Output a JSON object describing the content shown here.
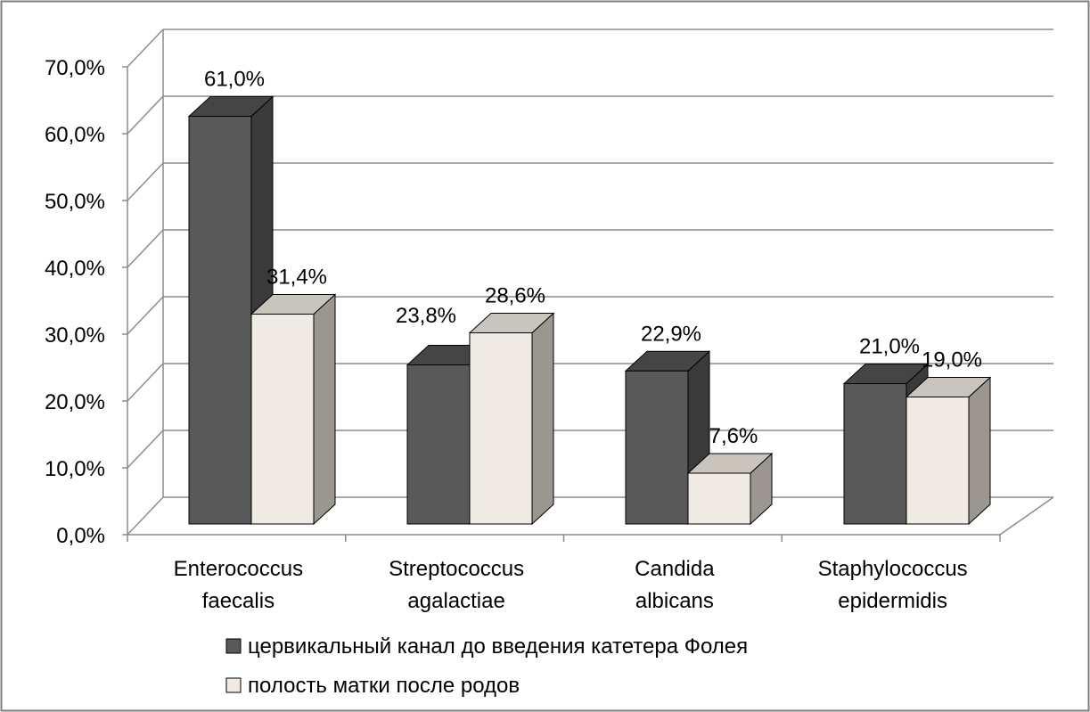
{
  "chart_data": {
    "type": "bar",
    "style": "3d-clustered-column",
    "categories": [
      [
        "Enterococcus",
        "faecalis"
      ],
      [
        "Streptococcus",
        "agalactiae"
      ],
      [
        "Candida",
        "albicans"
      ],
      [
        "Staphylococcus",
        "epidermidis"
      ]
    ],
    "series": [
      {
        "name": "цервикальный канал до введения катетера Фолея",
        "values": [
          61.0,
          23.8,
          22.9,
          21.0
        ],
        "data_labels": [
          "61,0%",
          "",
          "22,9%",
          "21,0%"
        ],
        "color": "#595959",
        "side_color": "#3a3a3a",
        "top_color": "#454545"
      },
      {
        "name": "полость матки после родов",
        "values": [
          31.4,
          28.6,
          7.6,
          19.0
        ],
        "data_labels": [
          "31,4%",
          "28,6%",
          "7,6%",
          "19,0%"
        ],
        "color": "#efebe4",
        "side_color": "#9b9690",
        "top_color": "#c9c4bc"
      }
    ],
    "extra_labels": [
      "23,8%"
    ],
    "y_ticks": [
      "0,0%",
      "10,0%",
      "20,0%",
      "30,0%",
      "40,0%",
      "50,0%",
      "60,0%",
      "70,0%"
    ],
    "ylim": [
      0,
      70
    ],
    "grid": true,
    "legend_position": "bottom"
  }
}
